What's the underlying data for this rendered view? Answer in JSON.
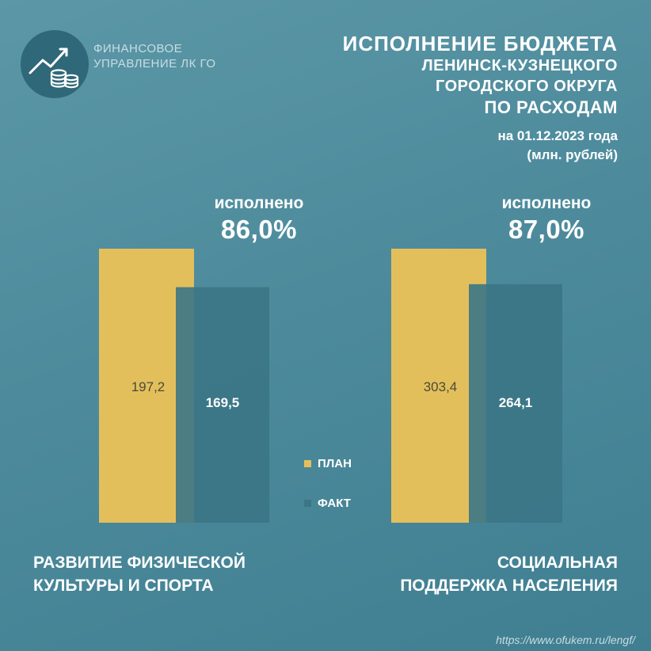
{
  "logo": {
    "line1": "Финансовое",
    "line2": "управление ЛК ГО"
  },
  "header": {
    "title_line1": "Исполнение бюджета",
    "title_line2": "Ленинск-Кузнецкого",
    "title_line3": "городского округа",
    "title_line4": "по расходам",
    "date": "на 01.12.2023 года",
    "units": "(млн. рублей)"
  },
  "execution": [
    {
      "label": "исполнено",
      "percent": "86,0%"
    },
    {
      "label": "исполнено",
      "percent": "87,0%"
    }
  ],
  "legend": {
    "plan": "ПЛАН",
    "fact": "ФАКТ"
  },
  "categories_text": [
    {
      "line1": "Развитие физической",
      "line2": "культуры и спорта"
    },
    {
      "line1": "Социальная",
      "line2": "поддержка населения"
    }
  ],
  "url": "https://www.ofukem.ru/lengf/",
  "colors": {
    "plan": "#e3bf5c",
    "fact": "#3b7686",
    "background": "#4d8b9c"
  },
  "chart_data": {
    "type": "bar",
    "categories": [
      "Развитие физической культуры и спорта",
      "Социальная поддержка населения"
    ],
    "series": [
      {
        "name": "ПЛАН",
        "values": [
          197.2,
          303.4
        ],
        "value_labels": [
          "197,2",
          "303,4"
        ]
      },
      {
        "name": "ФАКТ",
        "values": [
          169.5,
          264.1
        ],
        "value_labels": [
          "169,5",
          "264,1"
        ]
      }
    ],
    "legend": "center",
    "grid": false
  }
}
